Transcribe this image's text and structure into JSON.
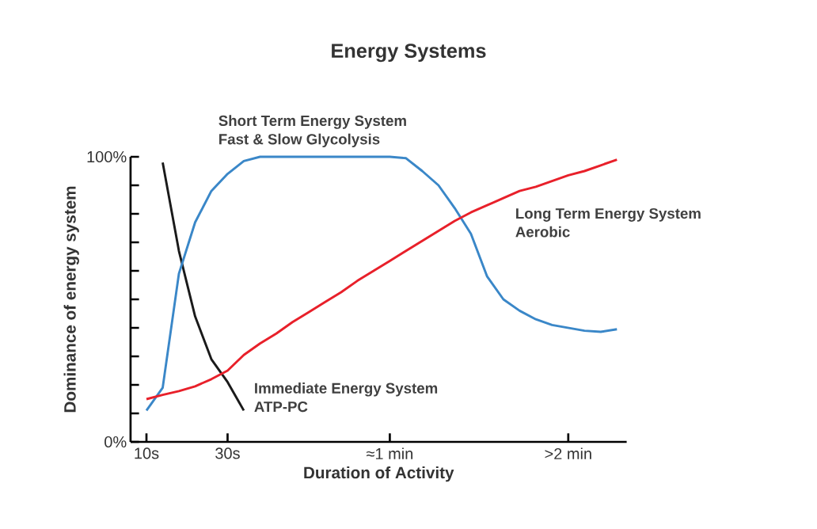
{
  "chart_data": {
    "type": "line",
    "title": "Energy Systems",
    "xlabel": "Duration of Activity",
    "ylabel": "Dominance of energy system",
    "categories": [
      "10s",
      null,
      null,
      null,
      null,
      "30s",
      null,
      null,
      null,
      null,
      null,
      null,
      null,
      null,
      null,
      "≈1 min",
      null,
      null,
      null,
      null,
      null,
      null,
      null,
      null,
      null,
      null,
      ">2 min",
      null,
      null,
      null
    ],
    "ylim": [
      0,
      100
    ],
    "yticks": [
      {
        "value": 0,
        "label": "0%"
      },
      {
        "value": 10,
        "label": null
      },
      {
        "value": 20,
        "label": null
      },
      {
        "value": 30,
        "label": null
      },
      {
        "value": 40,
        "label": null
      },
      {
        "value": 50,
        "label": null
      },
      {
        "value": 60,
        "label": null
      },
      {
        "value": 70,
        "label": null
      },
      {
        "value": 80,
        "label": null
      },
      {
        "value": 90,
        "label": null
      },
      {
        "value": 100,
        "label": "100%"
      }
    ],
    "grid": false,
    "legend": false,
    "marker": "none",
    "line_style": "solid",
    "series": [
      {
        "name": "Immediate Energy System",
        "color": "#1a1a1a",
        "values": [
          null,
          98,
          67,
          44,
          29,
          21,
          11,
          null,
          null,
          null,
          null,
          null,
          null,
          null,
          null,
          null,
          null,
          null,
          null,
          null,
          null,
          null,
          null,
          null,
          null,
          null,
          null,
          null,
          null,
          null
        ]
      },
      {
        "name": "Short Term Energy System",
        "color": "#3a87c8",
        "values": [
          11,
          19,
          59,
          77,
          88,
          94,
          98.5,
          100,
          100,
          100,
          100,
          100,
          100,
          100,
          100,
          100,
          99.5,
          95,
          90,
          82,
          73,
          58,
          50,
          46,
          43,
          41,
          40,
          39,
          38.6,
          39.5
        ]
      },
      {
        "name": "Long Term Energy System",
        "color": "#e8202a",
        "values": [
          15,
          16.5,
          17.8,
          19.5,
          22,
          25,
          30.5,
          34.5,
          38,
          42,
          45.5,
          49,
          52.5,
          56.5,
          60,
          63.5,
          67,
          70.5,
          74,
          77.5,
          80.5,
          83,
          85.5,
          88,
          89.5,
          91.5,
          93.5,
          95,
          97,
          99
        ]
      }
    ],
    "annotations": [
      "ATP-PC",
      "Fast & Slow Glycolysis",
      "Aerobic"
    ]
  }
}
